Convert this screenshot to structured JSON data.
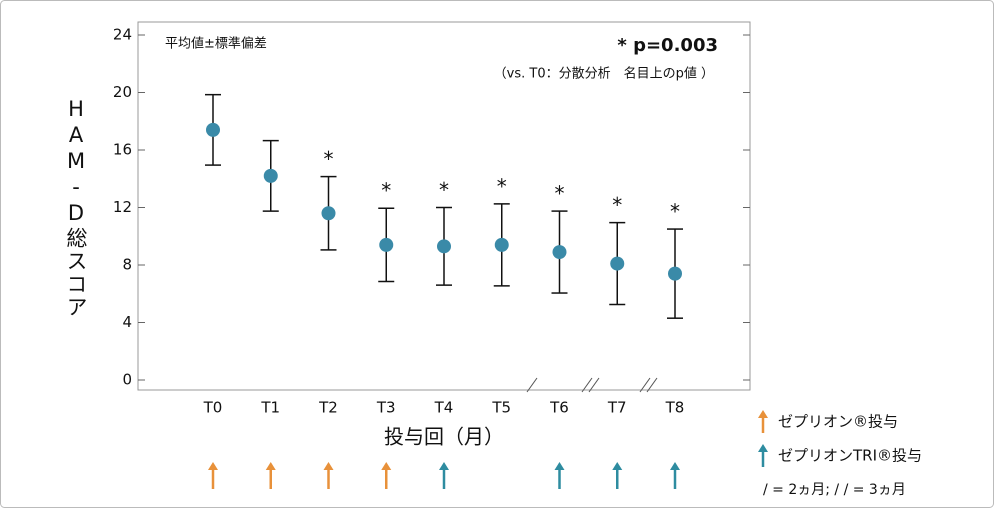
{
  "chart_data": {
    "type": "errorbar",
    "note": "平均値±標準偏差",
    "pvalue": "* p=0.003",
    "pvalue_note": "（vs. T0：分散分析　名目上のp値 ）",
    "ylabel": "HAM-D総スコア",
    "xlabel": "投与回（月）",
    "categories": [
      "T0",
      "T1",
      "T2",
      "T3",
      "T4",
      "T5",
      "T6",
      "T7",
      "T8"
    ],
    "series": [
      {
        "color": "#3a8aa8",
        "values": [
          17.4,
          14.2,
          11.6,
          9.4,
          9.3,
          9.4,
          8.9,
          8.1,
          7.4
        ],
        "errors": [
          2.45,
          2.45,
          2.55,
          2.55,
          2.7,
          2.85,
          2.85,
          2.85,
          3.1
        ]
      }
    ],
    "significance_labels": [
      null,
      null,
      "*",
      "*",
      "*",
      "*",
      "*",
      "*",
      "*"
    ],
    "ylim": [
      0,
      24
    ],
    "yticks": [
      0,
      4,
      8,
      12,
      16,
      20,
      24
    ],
    "dosing": [
      {
        "name": "ゼプリオン®投与",
        "color": "#e8913a",
        "categories": [
          0,
          1,
          2,
          3
        ]
      },
      {
        "name": "ゼプリオンTRI®投与",
        "color": "#2e8ca0",
        "categories": [
          4,
          6,
          7,
          8
        ]
      }
    ],
    "break_note": "/ = 2ヵ月; / / = 3ヵ月"
  }
}
